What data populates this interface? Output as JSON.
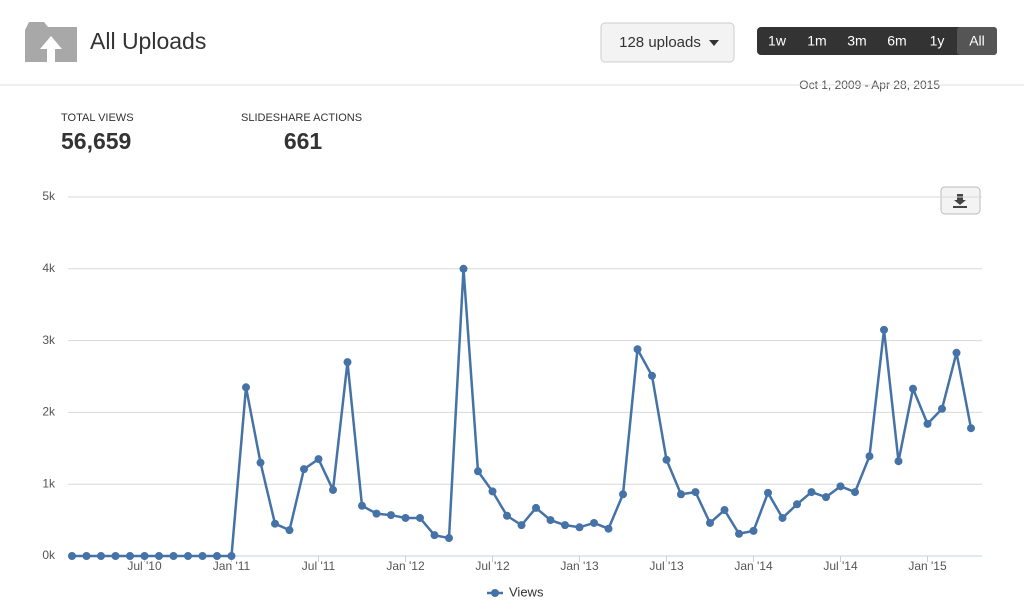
{
  "header": {
    "title": "All Uploads",
    "uploads_button": "128 uploads",
    "ranges": [
      "1w",
      "1m",
      "3m",
      "6m",
      "1y",
      "All"
    ],
    "date_range": "Oct 1, 2009 - Apr 28, 2015"
  },
  "stats": [
    {
      "label": "TOTAL VIEWS",
      "value": "56,659"
    },
    {
      "label": "SLIDESHARE ACTIONS",
      "value": "661"
    }
  ],
  "chart_data": {
    "type": "line",
    "categories": [
      null,
      null,
      null,
      null,
      null,
      "Jul '10",
      null,
      null,
      null,
      null,
      null,
      "Jan '11",
      null,
      null,
      null,
      null,
      null,
      "Jul '11",
      null,
      null,
      null,
      null,
      null,
      "Jan '12",
      null,
      null,
      null,
      null,
      null,
      "Jul '12",
      null,
      null,
      null,
      null,
      null,
      "Jan '13",
      null,
      null,
      null,
      null,
      null,
      "Jul '13",
      null,
      null,
      null,
      null,
      null,
      "Jan '14",
      null,
      null,
      null,
      null,
      null,
      "Jul '14",
      null,
      null,
      null,
      null,
      null,
      "Jan '15",
      null,
      null,
      null
    ],
    "series": [
      {
        "name": "Views",
        "color": "#4572a7",
        "values": [
          0,
          0,
          0,
          0,
          0,
          0,
          0,
          0,
          0,
          0,
          0,
          0,
          2350,
          1300,
          450,
          360,
          1210,
          1350,
          920,
          2700,
          700,
          590,
          570,
          530,
          530,
          290,
          250,
          4000,
          1180,
          900,
          560,
          430,
          670,
          500,
          430,
          400,
          460,
          380,
          860,
          2880,
          2510,
          1340,
          860,
          890,
          460,
          640,
          310,
          350,
          880,
          530,
          720,
          890,
          820,
          970,
          890,
          1390,
          3150,
          1320,
          2330,
          1840,
          2050,
          2830,
          1780
        ]
      }
    ],
    "ylim": [
      0,
      5000
    ],
    "yticks": [
      {
        "value": 0,
        "label": "0k"
      },
      {
        "value": 1000,
        "label": "1k"
      },
      {
        "value": 2000,
        "label": "2k"
      },
      {
        "value": 3000,
        "label": "3k"
      },
      {
        "value": 4000,
        "label": "4k"
      },
      {
        "value": 5000,
        "label": "5k"
      }
    ],
    "grid": true
  }
}
